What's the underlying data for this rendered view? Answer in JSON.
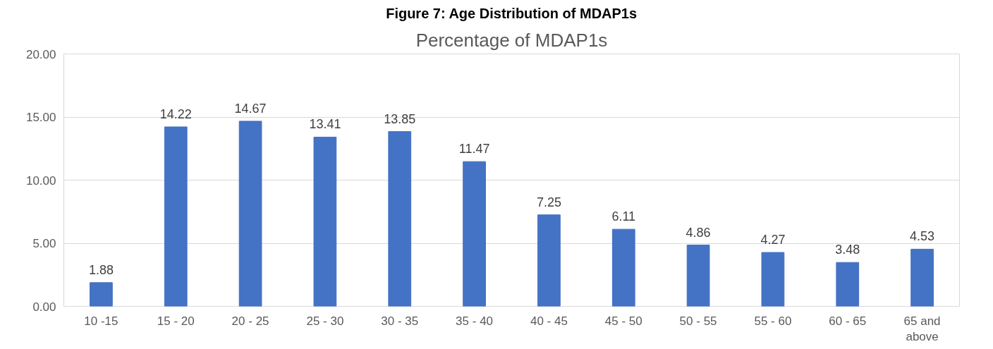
{
  "chart_data": {
    "type": "bar",
    "title": "Figure 7: Age Distribution of MDAP1s",
    "subtitle": "Percentage of MDAP1s",
    "categories": [
      "10 -15",
      "15 - 20",
      "20 - 25",
      "25 - 30",
      "30 - 35",
      "35 - 40",
      "40 - 45",
      "45 - 50",
      "50 - 55",
      "55 - 60",
      "60 - 65",
      "65 and above"
    ],
    "values": [
      1.88,
      14.22,
      14.67,
      13.41,
      13.85,
      11.47,
      7.25,
      6.11,
      4.86,
      4.27,
      3.48,
      4.53
    ],
    "color": "#4472c4",
    "ylim": [
      0,
      20
    ],
    "yticks": [
      {
        "value": 0,
        "label": "0.00"
      },
      {
        "value": 5,
        "label": "5.00"
      },
      {
        "value": 10,
        "label": "10.00"
      },
      {
        "value": 15,
        "label": "15.00"
      },
      {
        "value": 20,
        "label": "20.00"
      }
    ],
    "grid": "y",
    "data_labels": true
  }
}
